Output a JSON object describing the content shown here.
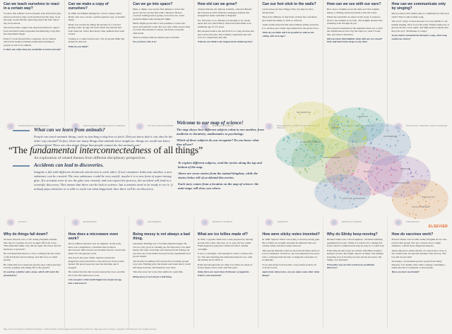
{
  "top_stories": [
    {
      "title": "Can we teach ourselves to react in a certain way?",
      "paragraphs": [
        "To show that reflexes can be learned, Ivan Pavlovich (also known as Pavlov) rang a bell and then fed his dogs. Soon the dogs would salivate when they heard the bell, before any food arrived.",
        "The bell became a signal: the dogs had learned to expect food and their bodies responded automatically, long after the experiment began.",
        "Pavlov's work showed that a response can be trained, which later helped scientists understand learning in people as well as in animals."
      ],
      "question": "Is there any reflex that you would like to teach yourself?"
    },
    {
      "title": "Can we make a copy of ourselves?",
      "paragraphs": [
        "In 1996, Ian Wilmut managed to create a sheep called Dolly, who was a clone: a perfect genetic copy of another sheep.",
        "Dolly was created by taking the nucleus of a cell and placing it into an egg cell from which the nucleus had been removed. Since then many other animals have been cloned.",
        "Cloning is a controversial topic. Not all people think this should be allowed."
      ],
      "question": "What do you think?"
    },
    {
      "title": "Can we go into space?",
      "paragraphs": [
        "Ham, a chimp, was not the first animal to travel into space, but he was the first with a mission. He had received training before going on board so he could perform simple tasks during the flight.",
        "Ham's flight proved that it was possible to travel into space and perform a task. He was only a little slower than on earth. He returned to safety, and lived a long life afterwards.",
        "There is another famous animal space traveller."
      ],
      "question": "Do you know who it is?"
    },
    {
      "title": "How old can we grow?",
      "paragraphs": [
        "Charles Darwin, the famous scientist, collected Harriet the Tortoise in 1835 from the Galapagos Islands and brought her home with him to England.",
        "For 100 years or so, Harriet was thought to be a male turtle and was called Harry. She lived until 2006, at an estimated age of 175 years.",
        "Her keepers believe she survived for so long because she had a stress-free life, had a mainly vegetarian diet and was on a vegetarian-only diet."
      ],
      "question": "What do you think is the longest-lived animal species?"
    },
    {
      "title": "Can our feet stick to the walls?",
      "paragraphs": [
        "Geckos may not have Happy Feet, but they do have Sticky Feet!",
        "They have millions of tiny hairs on their feet, and these give them the ability to stick to surfaces.",
        "Andre Geim observed this extraordinary ability and used it to develop new sticky tape inspired by the gecko's foot."
      ],
      "question": "What do you think will it be possible to walk on the ceiling with such tape?"
    },
    {
      "title": "How can we see with our ears?",
      "paragraphs": [
        "How does a dolphin see in the dark sea? The dolphin makes a clicking sound and sends it into the water.",
        "When the sound hits an object in the water, it bounces back to the dolphin as an echo. The dolphin absorbs this returning echo through its jaw.",
        "The sound is translated in the dolphin's inner ear, so that the dolphin knows how big the object is, what it looks like, and what it should be."
      ],
      "question": "Did you know that dolphins sleep with one eye closed? Only half their brain sleeps at any time!"
    },
    {
      "title": "How can we communicate only by singing?",
      "paragraphs": [
        "Did you know that whales sing to communicate with each other? This is called whale song.",
        "The word \"song\" is used because it is very similar to our human singing, but it is not the same. Whales make use of groans, moans, roars, sighs, and high pitched squeals that may last up to 30 minutes or longer."
      ],
      "question": "If you had to communicate through a song, what song would you choose?"
    }
  ],
  "top_mini_captions": [
    "NEUROSCIENCE | PSYCHOLOGY",
    "AGRICULTURAL AND BIOLOGICAL SCIENCES",
    "PHYSICS AND ASTRONOMY",
    "BIOLOGICAL SCIENCE",
    "BIOCHEMISTRY, GENETICS AND MOLECULAR BIOLOGY",
    "EARTH AND PLANETARY SCIENCES",
    "BIOLOGICAL SCIENCES | EARTH SCIENCES"
  ],
  "bottom_mini_captions": [
    "PHYSICS",
    "ENGINEERING",
    "ENGINEERING",
    "MATERIALS SCIENCE",
    "CHEMISTRY",
    "MATERIALS SCIENCE",
    "IMMUNOLOGY"
  ],
  "bottom_stories": [
    {
      "title": "Why do things fall down?",
      "paragraphs": [
        "Sir Isaac Newton was a 17th century English scientist. One day, in a garden, he saw an apple fall from a tree. This made him think: why did the apple fall down and not sideways or upwards?",
        "He concluded that there is a force coming from the centre of the Earth that attracts things, and this force is called gravity.",
        "He called this force universal gravity (also called gravity). Gravity explains why things fall to the ground."
      ],
      "question": "If you drop a feather and a stone, which will reach the ground first?"
    },
    {
      "title": "How does a microwave oven work?",
      "paragraphs": [
        "Percy LeBaron Spencer was an engineer. At his work, there was a magnetron, a machine that produces microwaves. Microwaves are invisible electric waves that make TVs and phones work.",
        "One day in the early 1940s, Spencer passed the magnetron and noticed that a chocolate bar in his pocket melted. He placed popcorn near the machine and it popped!",
        "He realised that the microwaves heated the food, and this led to the first microwave oven."
      ],
      "question": "Can you guess what would happen if you put an egg into a microwave?"
    },
    {
      "title": "Being messy is not always a bad thing.",
      "paragraphs": [
        "Alexander Fleming was a Scottish pharmacologist. He was not very good at cleaning up, his laboratory was quite messy. He went on holiday and returned from holiday, he saw that one of the dishes he used for his experiments had grown mould.",
        "The mould was killing off bacteria that can make people very sick. Fleming grew the mould and found that it could kill many bacteria, and therefore save lives.",
        "This discovery led to the first antibiotic: penicillin."
      ],
      "question": "Being messy is not always a bad thing."
    },
    {
      "title": "What are ice lollies made of?",
      "paragraphs": [
        "In 1905, a popular drink was a soda prepared by stirring powder into water. One day, an 11 year old boy called Frank Epperson prepared a drink and left it outside overnight.",
        "It was a cold night, cold enough for water to freeze into ice. The next morning, the drink had turned to ice, with the stirring stick still in it.",
        "Frank had invented the ice lolly! Ice lollies are made of frozen liquid, often water and fruit juice."
      ],
      "question": "Today there are more than 30 flavours of popsicles. What is your favourite?"
    },
    {
      "title": "How were sticky notes invented?",
      "paragraphs": [
        "In 1968, Spencer Silver was trying to develop strong glue. By accident, he actually invented an adhesive that was weakly sticky, but then easily removed.",
        "This special material could be used several times before it lost its stickiness. At first no one was interested, but years later a colleague had the idea of using the weak glue on bookmarks.",
        "Soon, this sticky note became a very useful product all over the world."
      ],
      "question": "Apart from sticky notes, can you name some other sticky things?"
    },
    {
      "title": "Why do Slinky keep moving?",
      "paragraphs": [
        "Richard James was a naval engineer, a material building equipment for boats. While at work he saw a spring fall from a shelf: it walked down step by step, in a coiled way.",
        "Following his discovery, he and his wife Betty bought a spring to protect the fragile objects on ships. The spring's bouncing way of moving was fun and its successor, the Slinky, was invented."
      ],
      "question": "What other toys are the result of an accidental discovery?"
    },
    {
      "title": "How do vaccines work?",
      "paragraphs": [
        "Edward Jenner was an 18th century English doctor who noticed that people who got cowpox never caught smallpox, a much more dangerous disease.",
        "Jenner injected a small amount of cowpox into a boy. A few weeks later, he injected smallpox into the boy. The boy did not get sick!",
        "Nowadays, vaccinations protect people from many diseases. It is usually done with a syringe containing a small amount of weakened or dead germs."
      ],
      "question": "Have you been vaccinated?"
    }
  ],
  "animals_box": {
    "title": "What can we learn from animals?",
    "paragraphs": [
      "People can teach animals things, such as teaching a dog how to fetch. Did you know that it can also be the other way around? In fact, there are many things that animals have taught us: things we would not know without them! There are also many things that people cannot do, but animals can!"
    ]
  },
  "welcome_box": {
    "title": "Welcome to our map of science!",
    "paragraphs": [
      "The map shows how different subjects relate to one another, from medicine to chemistry, mathematics to psychology.",
      "Which of these subjects do you recognize? Do you know what they all are?"
    ]
  },
  "main_title": {
    "prefix": "“The ",
    "emphasis": "fundamental interconnectedness",
    "suffix": " of all things”"
  },
  "subtitle": "An exploration of related themes from different disciplinary perspectives.",
  "accidents_box": {
    "title": "Accidents can lead to discoveries.",
    "paragraphs": [
      "Imagine a lab with different chemicals stored next to each other. If one container leaks into another, a new substance can be created. The new substance could be very useful: maybe it is a new form of super-strong glue. If a scientist were to see the glue was created, and can repeat the process, the accident will lead to a scientific discovery. This means that there can be luck in science, but scientists need to be ready to see it: if nobody pays attention or is able to work out what happened, then there will be no discovery."
    ]
  },
  "explore_box": {
    "paragraphs": [
      "To explore different subjects, read the stories along the top and bottom of the map.",
      "Above are seven stories from the animal kingdom, while the stories below tell of accidental discoveries.",
      "Each story comes from a location on the map of science: the mini-maps will show you where."
    ]
  },
  "map_labels": [
    "MATHEMATICS",
    "PHYSICS",
    "CHEMISTRY",
    "ENGINEERING",
    "EARTH SCIENCES",
    "BIOLOGY",
    "MEDICINE",
    "NEUROSCIENCE",
    "PSYCHOLOGY",
    "SOCIAL SCIENCES",
    "COMPUTER SCIENCE",
    "ARTS AND HUMANITIES"
  ],
  "map_colors": {
    "physics": "#c8d44a",
    "chemistry": "#5fb3a8",
    "engineering": "#7aa0c8",
    "medicine": "#d37c9e",
    "biology": "#9bc27a",
    "social": "#e0a46a",
    "neuro": "#a88bc8",
    "math": "#d9d46a"
  },
  "publisher": "ELSEVIER",
  "footer": "Map content and design by Matthew Richardson, Judith Kamalski, Sarah Huggett and Andrew Plume (Elsevier). Map data source: Scopus. Copyright © 2013 Elsevier Ltd; all rights reserved."
}
